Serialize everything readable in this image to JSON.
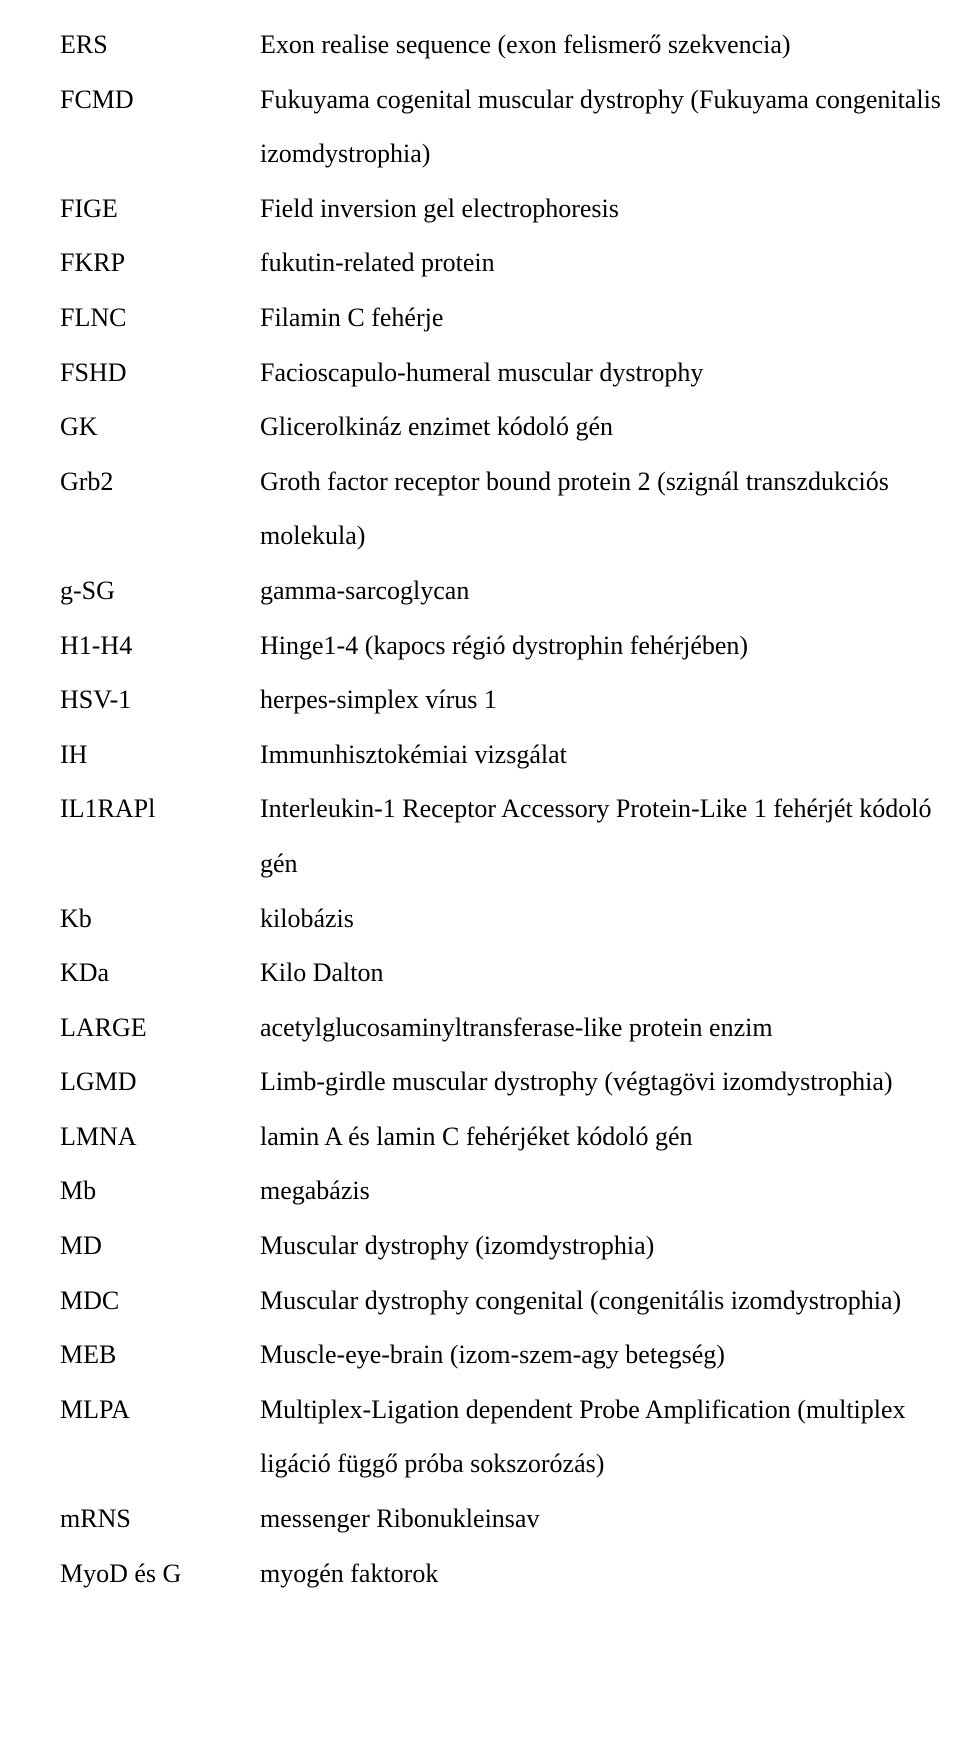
{
  "entries": [
    {
      "abbr": "ERS",
      "def": "Exon realise sequence (exon felismerő szekvencia)"
    },
    {
      "abbr": "FCMD",
      "def": "Fukuyama cogenital muscular dystrophy (Fukuyama congenitalis izomdystrophia)"
    },
    {
      "abbr": "FIGE",
      "def": "Field inversion gel electrophoresis"
    },
    {
      "abbr": "FKRP",
      "def": "fukutin-related protein"
    },
    {
      "abbr": "FLNC",
      "def": "Filamin C fehérje"
    },
    {
      "abbr": "FSHD",
      "def": "Facioscapulo-humeral muscular dystrophy"
    },
    {
      "abbr": "GK",
      "def": "Glicerolkináz enzimet kódoló gén"
    },
    {
      "abbr": "Grb2",
      "def": "Groth factor receptor bound protein 2 (szignál transzdukciós molekula)"
    },
    {
      "abbr": "g-SG",
      "def": "gamma-sarcoglycan"
    },
    {
      "abbr": "H1-H4",
      "def": "Hinge1-4 (kapocs régió dystrophin fehérjében)"
    },
    {
      "abbr": "HSV-1",
      "def": "herpes-simplex vírus 1"
    },
    {
      "abbr": "IH",
      "def": "Immunhisztokémiai vizsgálat"
    },
    {
      "abbr": "IL1RAPl",
      "def": "Interleukin-1 Receptor Accessory Protein-Like 1 fehérjét kódoló gén"
    },
    {
      "abbr": "Kb",
      "def": "kilobázis"
    },
    {
      "abbr": "KDa",
      "def": "Kilo Dalton"
    },
    {
      "abbr": "LARGE",
      "def": "acetylglucosaminyltransferase-like protein enzim"
    },
    {
      "abbr": "LGMD",
      "def": "Limb-girdle muscular dystrophy (végtagövi izomdystrophia)"
    },
    {
      "abbr": "LMNA",
      "def": "lamin A és lamin C fehérjéket kódoló gén"
    },
    {
      "abbr": "Mb",
      "def": "megabázis"
    },
    {
      "abbr": "MD",
      "def": "Muscular dystrophy (izomdystrophia)"
    },
    {
      "abbr": "MDC",
      "def": "Muscular dystrophy congenital (congenitális izomdystrophia)"
    },
    {
      "abbr": "MEB",
      "def": "Muscle-eye-brain (izom-szem-agy betegség)"
    },
    {
      "abbr": "MLPA",
      "def": "Multiplex-Ligation dependent Probe Amplification (multiplex ligáció függő próba sokszorózás)"
    },
    {
      "abbr": "mRNS",
      "def": "messenger Ribonukleinsav"
    },
    {
      "abbr": "MyoD és G",
      "def": "myogén faktorok"
    }
  ]
}
